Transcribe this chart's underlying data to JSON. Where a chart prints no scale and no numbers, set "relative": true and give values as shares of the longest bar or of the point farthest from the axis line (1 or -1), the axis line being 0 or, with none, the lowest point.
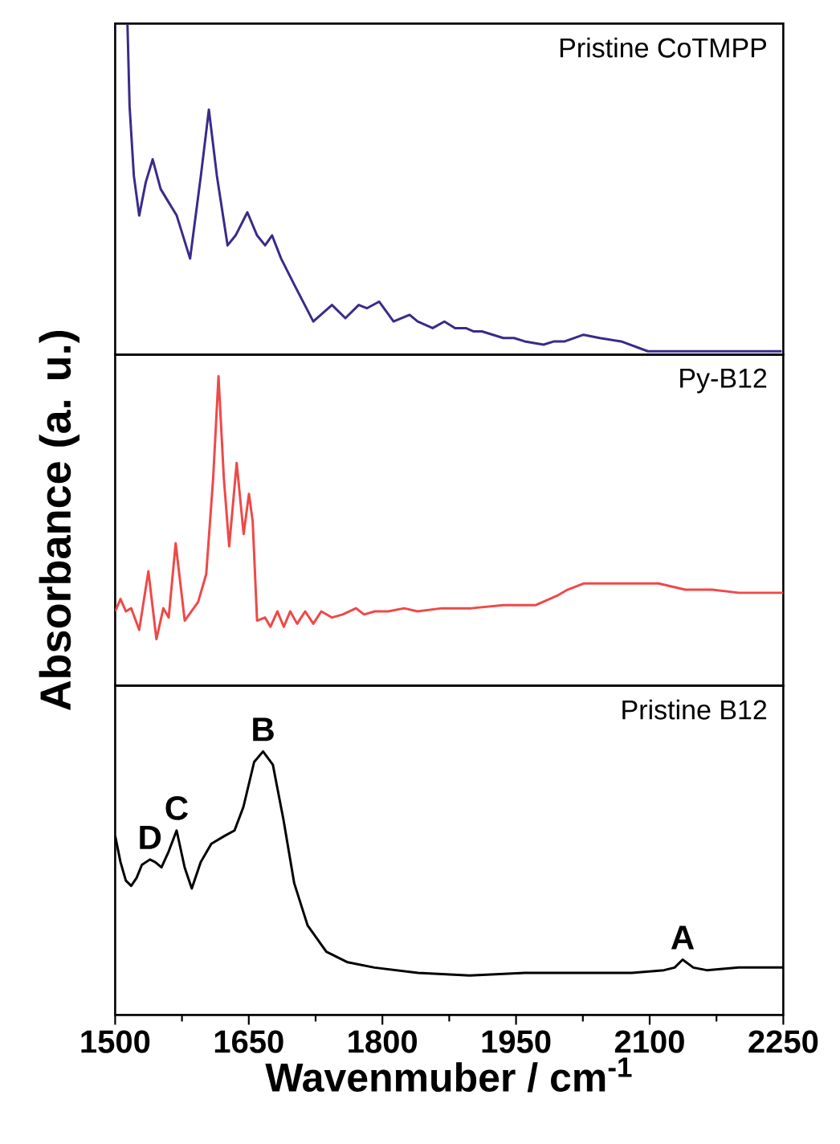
{
  "chart_data": [
    {
      "type": "line",
      "relative": true,
      "xlim": [
        1500,
        2250
      ],
      "tick_labels": false,
      "x": [
        1513.8,
        1516.2,
        1521.0,
        1527.0,
        1534.3,
        1542.1,
        1551.1,
        1560.1,
        1569.1,
        1584.1,
        1596.2,
        1605.2,
        1614.2,
        1626.2,
        1635.2,
        1648.4,
        1659.3,
        1668.3,
        1676.1,
        1686.3,
        1701.3,
        1722.4,
        1743.4,
        1758.4,
        1773.4,
        1782.5,
        1796.3,
        1812.5,
        1830.5,
        1839.5,
        1856.4,
        1869.6,
        1881.6,
        1893.6,
        1902.6,
        1911.7,
        1935.7,
        1947.7,
        1959.7,
        1980.8,
        1992.8,
        2004.8,
        2025.8,
        2043.9,
        2067.9,
        2098.0,
        2128.0,
        2170.1,
        2200.1,
        2248.2
      ],
      "series": [
        {
          "name": "Pristine CoTMPP",
          "color": "#3b2a8a",
          "values": [
            1.0,
            0.75,
            0.54,
            0.42,
            0.52,
            0.59,
            0.5,
            0.46,
            0.42,
            0.29,
            0.54,
            0.74,
            0.54,
            0.33,
            0.36,
            0.43,
            0.36,
            0.33,
            0.36,
            0.29,
            0.21,
            0.1,
            0.15,
            0.11,
            0.15,
            0.14,
            0.16,
            0.1,
            0.12,
            0.1,
            0.08,
            0.1,
            0.08,
            0.08,
            0.07,
            0.07,
            0.05,
            0.05,
            0.04,
            0.03,
            0.04,
            0.04,
            0.06,
            0.05,
            0.04,
            0.01,
            0.01,
            0.01,
            0.01,
            0.01
          ]
        }
      ]
    },
    {
      "type": "line",
      "relative": true,
      "xlim": [
        1500,
        2250
      ],
      "tick_labels": false,
      "ylabel": "Absorbance (a. u.)",
      "x": [
        1500,
        1506.0,
        1512.0,
        1518.0,
        1527.0,
        1537.3,
        1546.3,
        1554.1,
        1560.1,
        1567.9,
        1578.1,
        1593.1,
        1602.2,
        1610.0,
        1616.0,
        1622.0,
        1628.0,
        1636.4,
        1644.2,
        1650.2,
        1654.4,
        1659.3,
        1668.3,
        1674.3,
        1682.1,
        1689.3,
        1696.5,
        1704.3,
        1713.3,
        1722.4,
        1731.4,
        1743.4,
        1755.4,
        1770.4,
        1779.4,
        1791.5,
        1806.5,
        1824.5,
        1839.5,
        1866.6,
        1899.6,
        1935.7,
        1971.7,
        1995.8,
        2007.8,
        2025.8,
        2055.9,
        2110.0,
        2140.0,
        2170.1,
        2200.1,
        2250
      ],
      "series": [
        {
          "name": "Py-B12",
          "color": "#f04848",
          "values": [
            0.24,
            0.28,
            0.24,
            0.25,
            0.18,
            0.37,
            0.15,
            0.25,
            0.22,
            0.46,
            0.21,
            0.27,
            0.36,
            0.67,
            1.0,
            0.67,
            0.45,
            0.72,
            0.49,
            0.62,
            0.53,
            0.21,
            0.22,
            0.19,
            0.24,
            0.19,
            0.24,
            0.2,
            0.24,
            0.2,
            0.24,
            0.22,
            0.23,
            0.25,
            0.23,
            0.24,
            0.24,
            0.25,
            0.24,
            0.25,
            0.25,
            0.26,
            0.26,
            0.29,
            0.31,
            0.33,
            0.33,
            0.33,
            0.31,
            0.31,
            0.3,
            0.3
          ]
        }
      ]
    },
    {
      "type": "line",
      "relative": true,
      "xlim": [
        1500,
        2250
      ],
      "xticks": [
        1500,
        1650,
        1800,
        1950,
        2100,
        2250
      ],
      "tick_labels": "x",
      "xlabel": "Wavenmuber / cm$^{-1}$",
      "x": [
        1500,
        1506,
        1512,
        1518,
        1524,
        1530,
        1539,
        1545,
        1552,
        1560,
        1569,
        1578,
        1586,
        1596,
        1608,
        1623,
        1634,
        1644,
        1656,
        1666,
        1677,
        1689,
        1701,
        1716,
        1737,
        1761,
        1791,
        1840,
        1898,
        1960,
        2020,
        2080,
        2116,
        2128,
        2137,
        2149,
        2164,
        2200,
        2250
      ],
      "series": [
        {
          "name": "Pristine B12",
          "color": "#000000",
          "values": [
            0.68,
            0.58,
            0.51,
            0.49,
            0.52,
            0.57,
            0.59,
            0.58,
            0.56,
            0.62,
            0.7,
            0.56,
            0.48,
            0.58,
            0.65,
            0.68,
            0.7,
            0.79,
            0.96,
            1.0,
            0.95,
            0.74,
            0.5,
            0.34,
            0.24,
            0.2,
            0.18,
            0.16,
            0.15,
            0.16,
            0.16,
            0.16,
            0.17,
            0.18,
            0.21,
            0.18,
            0.17,
            0.18,
            0.18
          ]
        }
      ],
      "annotations": [
        {
          "text": "B",
          "x": 1666,
          "y": 1.0
        },
        {
          "text": "C",
          "x": 1569,
          "y": 0.7
        },
        {
          "text": "D",
          "x": 1539,
          "y": 0.59
        },
        {
          "text": "A",
          "x": 2137,
          "y": 0.21
        }
      ]
    }
  ]
}
